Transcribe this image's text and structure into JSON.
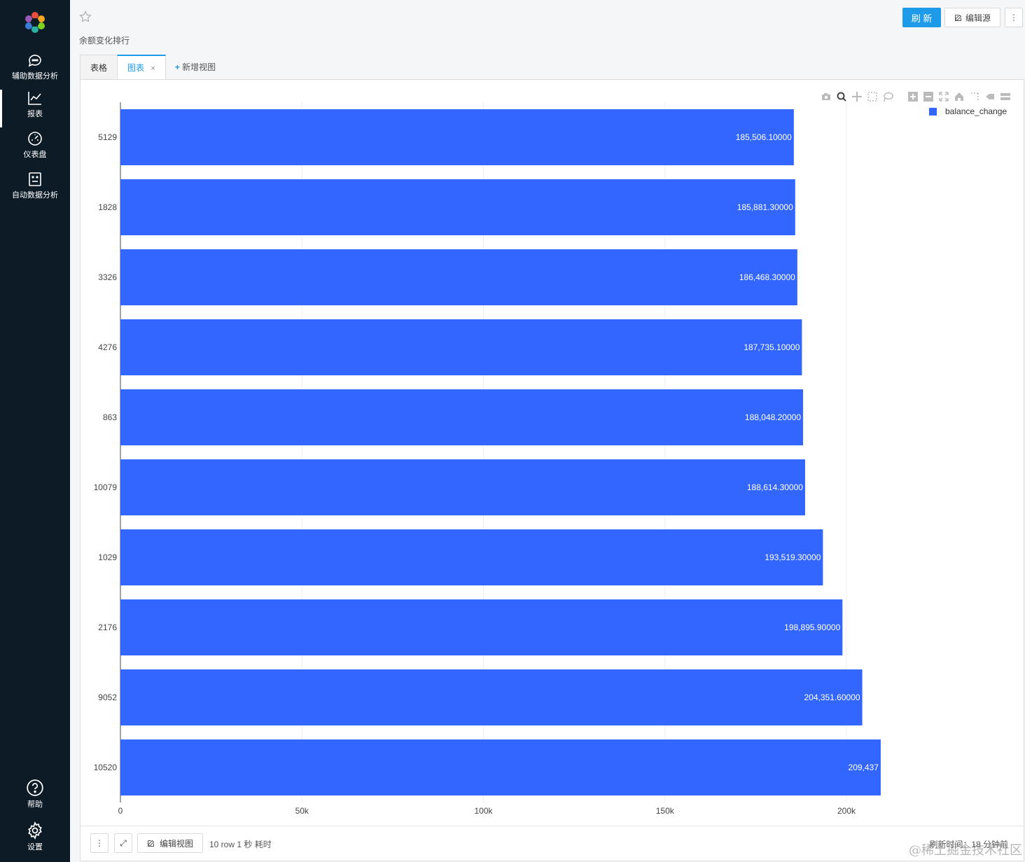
{
  "sidebar": {
    "items": [
      {
        "label": "辅助数据分析",
        "icon": "chat-icon"
      },
      {
        "label": "报表",
        "icon": "line-chart-icon"
      },
      {
        "label": "仪表盘",
        "icon": "dashboard-icon"
      },
      {
        "label": "自动数据分析",
        "icon": "robot-icon"
      }
    ],
    "bottom": [
      {
        "label": "帮助",
        "icon": "help-icon"
      },
      {
        "label": "设置",
        "icon": "gear-icon"
      }
    ]
  },
  "header": {
    "subtitle": "余额变化排行",
    "refresh_label": "刷 新",
    "edit_source_label": "编辑源",
    "more_label": "⋮"
  },
  "tabs": [
    {
      "label": "表格",
      "active": false
    },
    {
      "label": "图表",
      "active": true,
      "closable": true
    }
  ],
  "add_view_label": "新增视图",
  "chart_data": {
    "type": "bar",
    "orientation": "horizontal",
    "categories": [
      "5129",
      "1828",
      "3326",
      "4276",
      "863",
      "10079",
      "1029",
      "2176",
      "9052",
      "10520"
    ],
    "series": [
      {
        "name": "balance_change",
        "values": [
          185506.1,
          185881.3,
          186468.3,
          187735.1,
          188048.2,
          188614.3,
          193519.3,
          198895.9,
          204351.6,
          209437
        ],
        "labels": [
          "185,506.10000",
          "185,881.30000",
          "186,468.30000",
          "187,735.10000",
          "188,048.20000",
          "188,614.30000",
          "193,519.30000",
          "198,895.90000",
          "204,351.60000",
          "209,437"
        ]
      }
    ],
    "xlim": [
      0,
      210000
    ],
    "xticks": [
      0,
      50000,
      100000,
      150000,
      200000
    ],
    "xtick_labels": [
      "0",
      "50k",
      "100k",
      "150k",
      "200k"
    ],
    "grid": true,
    "legend_position": "top-right",
    "bar_color": "#3366ff"
  },
  "footer": {
    "more_label": "⋮",
    "expand_label": "⤢",
    "edit_view_label": "编辑视图",
    "info": "10 row 1 秒 耗时",
    "refresh_time": "刷新时间：18 分钟前"
  },
  "watermark": "@稀土掘金技术社区"
}
